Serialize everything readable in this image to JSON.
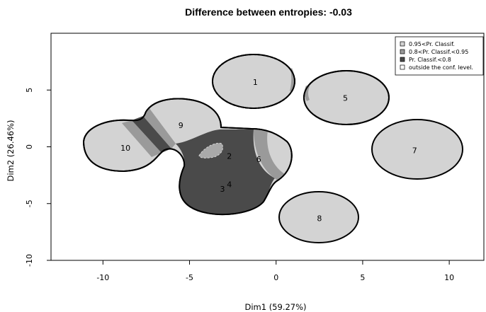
{
  "chart_data": {
    "type": "scatter",
    "title": "Difference between entropies: -0.03",
    "xlabel": "Dim1 (59.27%)",
    "ylabel": "Dim2 (26.46%)",
    "xlim": [
      -13,
      12
    ],
    "ylim": [
      -10,
      10
    ],
    "x_ticks": [
      -10,
      -5,
      0,
      5,
      10
    ],
    "y_ticks": [
      -10,
      -5,
      0,
      5
    ],
    "x_tick_labels": [
      "-10",
      "-5",
      "0",
      "5",
      "10"
    ],
    "y_tick_labels": [
      "-10",
      "-5",
      "0",
      "5"
    ],
    "regions": {
      "high": {
        "label": "0.95<Pr. Classif.",
        "color": "#d3d3d3"
      },
      "mid": {
        "label": "0.8<Pr. Classif.<0.95",
        "color": "#9a9a9a"
      },
      "low": {
        "label": "Pr. Classif.<0.8",
        "color": "#4a4a4a"
      },
      "outside": {
        "label": "outside the conf. level.",
        "color": "#ffffff"
      }
    },
    "legend_position": "top-right",
    "clusters": [
      {
        "label": "1",
        "x": -1.2,
        "y": 5.7
      },
      {
        "label": "5",
        "x": 4.0,
        "y": 4.3
      },
      {
        "label": "7",
        "x": 8.0,
        "y": -0.3
      },
      {
        "label": "8",
        "x": 2.5,
        "y": -6.3
      },
      {
        "label": "9",
        "x": -5.5,
        "y": 1.9
      },
      {
        "label": "10",
        "x": -8.7,
        "y": -0.1
      },
      {
        "label": "2",
        "x": -2.7,
        "y": -0.8
      },
      {
        "label": "6",
        "x": -1.0,
        "y": -1.1
      },
      {
        "label": "3",
        "x": -3.1,
        "y": -3.7
      },
      {
        "label": "4",
        "x": -2.7,
        "y": -3.3
      }
    ]
  }
}
